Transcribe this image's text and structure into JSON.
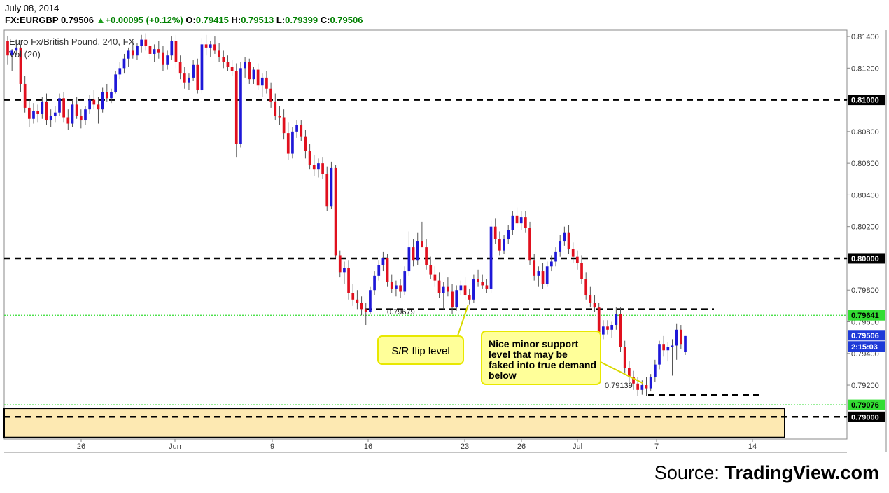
{
  "header": {
    "date": "July 08, 2014",
    "symbol": "FX:EURGBP",
    "last": "0.79506",
    "change": "+0.00095 (+0.12%)",
    "open_label": "O:",
    "open": "0.79415",
    "high_label": "H:",
    "high": "0.79513",
    "low_label": "L:",
    "low": "0.79399",
    "close_label": "C:",
    "close": "0.79506",
    "instrument_name": "Euro Fx/British Pound, 240, FX",
    "volume_label": "Vol (20)"
  },
  "source": {
    "prefix": "Source:",
    "brand": "TradingView.com"
  },
  "colors": {
    "bull": "#1e18d8",
    "bear": "#e0101e",
    "support_line": "#000000",
    "green_line": "#33dd33",
    "zone_fill": "#fde9b2",
    "callout_fill": "#ffff99",
    "callout_border": "#e8e800",
    "price_tag_blue": "#1e3ad8",
    "price_tag_green": "#33dd33"
  },
  "chart_data": {
    "type": "candlestick",
    "ylim": [
      0.7886,
      0.8144
    ],
    "y_ticks": [
      "0.81400",
      "0.81200",
      "0.81000",
      "0.80800",
      "0.80600",
      "0.80400",
      "0.80200",
      "0.80000",
      "0.79800",
      "0.79600",
      "0.79400",
      "0.79200",
      "0.79000"
    ],
    "x_ticks": [
      "26",
      "Jun",
      "9",
      "16",
      "23",
      "26",
      "Jul",
      "7",
      "14"
    ],
    "price_tags": [
      {
        "value": "0.81000",
        "style": "black"
      },
      {
        "value": "0.80000",
        "style": "black"
      },
      {
        "value": "0.79641",
        "style": "green"
      },
      {
        "value": "0.79506",
        "style": "blue"
      },
      {
        "value": "2:15:03",
        "style": "blue"
      },
      {
        "value": "0.79076",
        "style": "green"
      },
      {
        "value": "0.79000",
        "style": "black"
      }
    ],
    "horizontal_levels": [
      {
        "price": 0.81,
        "style": "dashed-black"
      },
      {
        "price": 0.8,
        "style": "dashed-black"
      },
      {
        "price": 0.79641,
        "style": "dotted-green"
      },
      {
        "price": 0.79076,
        "style": "dotted-green"
      },
      {
        "price": 0.79,
        "style": "dashed-black"
      },
      {
        "price": 0.79679,
        "style": "dashed-black-segment"
      },
      {
        "price": 0.79139,
        "style": "dashed-black-segment"
      }
    ],
    "demand_zone": [
      0.7887,
      0.79076
    ],
    "price_labels": [
      "0.79679",
      "0.79139"
    ],
    "annotations": [
      "S/R flip level",
      "Nice minor support level that may be faked into true demand below"
    ],
    "series": [
      {
        "ohlc": [
          [
            0.8137,
            0.814,
            0.8122,
            0.8128
          ],
          [
            0.8128,
            0.8132,
            0.8118,
            0.8131
          ],
          [
            0.8131,
            0.8138,
            0.8128,
            0.8133
          ],
          [
            0.8133,
            0.8135,
            0.8105,
            0.811
          ],
          [
            0.811,
            0.8115,
            0.8092,
            0.8095
          ],
          [
            0.8095,
            0.81,
            0.8083,
            0.8088
          ],
          [
            0.8088,
            0.8098,
            0.8085,
            0.8093
          ],
          [
            0.8093,
            0.8097,
            0.8086,
            0.8091
          ],
          [
            0.8091,
            0.8102,
            0.8088,
            0.8099
          ],
          [
            0.8099,
            0.8104,
            0.8084,
            0.8087
          ],
          [
            0.8087,
            0.8094,
            0.8083,
            0.809
          ],
          [
            0.809,
            0.8096,
            0.8086,
            0.8092
          ],
          [
            0.8092,
            0.8104,
            0.809,
            0.8101
          ],
          [
            0.8101,
            0.8105,
            0.8086,
            0.8089
          ],
          [
            0.8089,
            0.8094,
            0.8081,
            0.8085
          ],
          [
            0.8085,
            0.81,
            0.8083,
            0.8097
          ],
          [
            0.8097,
            0.8102,
            0.8088,
            0.809
          ],
          [
            0.809,
            0.8094,
            0.8082,
            0.8087
          ],
          [
            0.8087,
            0.8096,
            0.8084,
            0.8094
          ],
          [
            0.8094,
            0.8103,
            0.8091,
            0.81
          ],
          [
            0.81,
            0.8106,
            0.8094,
            0.8097
          ],
          [
            0.8097,
            0.8102,
            0.8085,
            0.8094
          ],
          [
            0.8094,
            0.8108,
            0.8092,
            0.8105
          ],
          [
            0.8105,
            0.811,
            0.8099,
            0.8101
          ],
          [
            0.8101,
            0.8107,
            0.8098,
            0.8105
          ],
          [
            0.8105,
            0.8118,
            0.8104,
            0.8116
          ],
          [
            0.8116,
            0.8124,
            0.8113,
            0.812
          ],
          [
            0.812,
            0.8129,
            0.8117,
            0.8126
          ],
          [
            0.8126,
            0.8133,
            0.8121,
            0.8131
          ],
          [
            0.8131,
            0.8137,
            0.8126,
            0.8128
          ],
          [
            0.8128,
            0.8136,
            0.8125,
            0.8134
          ],
          [
            0.8134,
            0.8141,
            0.813,
            0.8138
          ],
          [
            0.8138,
            0.8142,
            0.8131,
            0.8134
          ],
          [
            0.8134,
            0.8138,
            0.8126,
            0.8129
          ],
          [
            0.8129,
            0.8135,
            0.8124,
            0.8132
          ],
          [
            0.8132,
            0.8137,
            0.8126,
            0.813
          ],
          [
            0.813,
            0.8134,
            0.8118,
            0.8122
          ],
          [
            0.8122,
            0.8131,
            0.8119,
            0.8128
          ],
          [
            0.8128,
            0.814,
            0.8125,
            0.8137
          ],
          [
            0.8137,
            0.8141,
            0.812,
            0.8124
          ],
          [
            0.8124,
            0.8128,
            0.8113,
            0.8117
          ],
          [
            0.8117,
            0.8121,
            0.8107,
            0.8111
          ],
          [
            0.8111,
            0.8117,
            0.8106,
            0.8114
          ],
          [
            0.8114,
            0.8125,
            0.8112,
            0.8122
          ],
          [
            0.8122,
            0.8126,
            0.8104,
            0.8106
          ],
          [
            0.8106,
            0.8139,
            0.8104,
            0.8135
          ],
          [
            0.8135,
            0.8141,
            0.8128,
            0.8133
          ],
          [
            0.8133,
            0.8137,
            0.8127,
            0.8135
          ],
          [
            0.8135,
            0.814,
            0.8129,
            0.8131
          ],
          [
            0.8131,
            0.8136,
            0.8124,
            0.8127
          ],
          [
            0.8127,
            0.8131,
            0.812,
            0.8124
          ],
          [
            0.8124,
            0.8128,
            0.8118,
            0.8121
          ],
          [
            0.8121,
            0.8125,
            0.8115,
            0.8118
          ],
          [
            0.8118,
            0.8123,
            0.8064,
            0.8072
          ],
          [
            0.8072,
            0.8124,
            0.807,
            0.812
          ],
          [
            0.812,
            0.8127,
            0.8114,
            0.8124
          ],
          [
            0.8124,
            0.8126,
            0.811,
            0.8113
          ],
          [
            0.8113,
            0.8121,
            0.811,
            0.8119
          ],
          [
            0.8119,
            0.8123,
            0.8106,
            0.8109
          ],
          [
            0.8109,
            0.8117,
            0.8102,
            0.8114
          ],
          [
            0.8114,
            0.8118,
            0.8104,
            0.8107
          ],
          [
            0.8107,
            0.8111,
            0.8095,
            0.8099
          ],
          [
            0.8099,
            0.8104,
            0.8087,
            0.809
          ],
          [
            0.809,
            0.8096,
            0.8084,
            0.8089
          ],
          [
            0.8089,
            0.8094,
            0.8075,
            0.8079
          ],
          [
            0.8079,
            0.8086,
            0.8062,
            0.8066
          ],
          [
            0.8066,
            0.8083,
            0.8063,
            0.808
          ],
          [
            0.808,
            0.8087,
            0.8076,
            0.8084
          ],
          [
            0.8084,
            0.8087,
            0.8074,
            0.8077
          ],
          [
            0.8077,
            0.8081,
            0.8063,
            0.8068
          ],
          [
            0.8068,
            0.8072,
            0.8056,
            0.8059
          ],
          [
            0.8059,
            0.8065,
            0.8052,
            0.8056
          ],
          [
            0.8056,
            0.8063,
            0.8051,
            0.806
          ],
          [
            0.806,
            0.8064,
            0.805,
            0.8053
          ],
          [
            0.8053,
            0.8058,
            0.803,
            0.8033
          ],
          [
            0.8033,
            0.8061,
            0.8031,
            0.8057
          ],
          [
            0.8057,
            0.8059,
            0.8,
            0.8002
          ],
          [
            0.8002,
            0.8005,
            0.7988,
            0.7991
          ],
          [
            0.7991,
            0.7998,
            0.7984,
            0.7994
          ],
          [
            0.7994,
            0.7999,
            0.7974,
            0.7978
          ],
          [
            0.7978,
            0.7984,
            0.797,
            0.7974
          ],
          [
            0.7974,
            0.798,
            0.7968,
            0.7972
          ],
          [
            0.7972,
            0.7976,
            0.7964,
            0.7968
          ],
          [
            0.7968,
            0.7972,
            0.7958,
            0.7966
          ],
          [
            0.7966,
            0.7982,
            0.7965,
            0.798
          ],
          [
            0.798,
            0.7992,
            0.7977,
            0.7989
          ],
          [
            0.7989,
            0.7999,
            0.7986,
            0.7996
          ],
          [
            0.7996,
            0.8004,
            0.7992,
            0.8
          ],
          [
            0.8,
            0.8003,
            0.7982,
            0.7985
          ],
          [
            0.7985,
            0.799,
            0.7978,
            0.7981
          ],
          [
            0.7981,
            0.7986,
            0.7976,
            0.7983
          ],
          [
            0.7983,
            0.7987,
            0.7975,
            0.7979
          ],
          [
            0.7979,
            0.7995,
            0.7977,
            0.7992
          ],
          [
            0.7992,
            0.8017,
            0.7989,
            0.8007
          ],
          [
            0.8007,
            0.8012,
            0.7995,
            0.7999
          ],
          [
            0.7999,
            0.8016,
            0.7996,
            0.8011
          ],
          [
            0.8011,
            0.8023,
            0.8008,
            0.8007
          ],
          [
            0.8007,
            0.8012,
            0.7993,
            0.7996
          ],
          [
            0.7996,
            0.8001,
            0.7987,
            0.799
          ],
          [
            0.799,
            0.7995,
            0.7982,
            0.7986
          ],
          [
            0.7986,
            0.7991,
            0.7975,
            0.7978
          ],
          [
            0.7978,
            0.7985,
            0.7968,
            0.7982
          ],
          [
            0.7982,
            0.7988,
            0.7976,
            0.7979
          ],
          [
            0.7979,
            0.7984,
            0.7965,
            0.7969
          ],
          [
            0.7969,
            0.7983,
            0.7967,
            0.798
          ],
          [
            0.798,
            0.7986,
            0.7977,
            0.7983
          ],
          [
            0.7983,
            0.7988,
            0.7974,
            0.7977
          ],
          [
            0.7977,
            0.7981,
            0.7971,
            0.7974
          ],
          [
            0.7974,
            0.799,
            0.7972,
            0.7987
          ],
          [
            0.7987,
            0.7993,
            0.7982,
            0.7985
          ],
          [
            0.7985,
            0.799,
            0.7981,
            0.7983
          ],
          [
            0.7983,
            0.7987,
            0.7978,
            0.7981
          ],
          [
            0.7981,
            0.8024,
            0.7978,
            0.802
          ],
          [
            0.802,
            0.8025,
            0.8009,
            0.8012
          ],
          [
            0.8012,
            0.8017,
            0.8002,
            0.8005
          ],
          [
            0.8005,
            0.8015,
            0.8003,
            0.8012
          ],
          [
            0.8012,
            0.8021,
            0.8009,
            0.8018
          ],
          [
            0.8018,
            0.803,
            0.8015,
            0.8027
          ],
          [
            0.8027,
            0.8032,
            0.8019,
            0.8022
          ],
          [
            0.8022,
            0.803,
            0.8018,
            0.8026
          ],
          [
            0.8026,
            0.803,
            0.8016,
            0.8019
          ],
          [
            0.8019,
            0.8023,
            0.7996,
            0.7999
          ],
          [
            0.7999,
            0.8003,
            0.7986,
            0.7989
          ],
          [
            0.7989,
            0.7995,
            0.7982,
            0.7992
          ],
          [
            0.7992,
            0.7997,
            0.7981,
            0.7984
          ],
          [
            0.7984,
            0.7998,
            0.7982,
            0.7995
          ],
          [
            0.7995,
            0.8002,
            0.7992,
            0.7998
          ],
          [
            0.7998,
            0.8007,
            0.7995,
            0.8004
          ],
          [
            0.8004,
            0.8015,
            0.8001,
            0.8011
          ],
          [
            0.8011,
            0.802,
            0.8008,
            0.8016
          ],
          [
            0.8016,
            0.8021,
            0.8003,
            0.8006
          ],
          [
            0.8006,
            0.801,
            0.7997,
            0.8001
          ],
          [
            0.8001,
            0.8005,
            0.7993,
            0.7997
          ],
          [
            0.7997,
            0.8002,
            0.7984,
            0.7987
          ],
          [
            0.7987,
            0.7991,
            0.7974,
            0.7977
          ],
          [
            0.7977,
            0.7982,
            0.7969,
            0.7972
          ],
          [
            0.7972,
            0.7977,
            0.7966,
            0.7969
          ],
          [
            0.7969,
            0.7972,
            0.7949,
            0.7952
          ],
          [
            0.7952,
            0.7961,
            0.7949,
            0.7957
          ],
          [
            0.7957,
            0.7961,
            0.7952,
            0.7955
          ],
          [
            0.7955,
            0.796,
            0.795,
            0.7958
          ],
          [
            0.7958,
            0.7969,
            0.7955,
            0.7965
          ],
          [
            0.7965,
            0.7969,
            0.7941,
            0.7944
          ],
          [
            0.7944,
            0.7948,
            0.7928,
            0.7931
          ],
          [
            0.7931,
            0.7935,
            0.7922,
            0.7925
          ],
          [
            0.7925,
            0.7929,
            0.7917,
            0.7921
          ],
          [
            0.7921,
            0.7925,
            0.7913,
            0.7917
          ],
          [
            0.7917,
            0.7923,
            0.7914,
            0.792
          ],
          [
            0.792,
            0.7925,
            0.7913,
            0.7918
          ],
          [
            0.7918,
            0.7927,
            0.7916,
            0.7925
          ],
          [
            0.7925,
            0.7936,
            0.7922,
            0.7933
          ],
          [
            0.7933,
            0.7948,
            0.793,
            0.7946
          ],
          [
            0.7946,
            0.7951,
            0.7938,
            0.7942
          ],
          [
            0.7942,
            0.7947,
            0.7935,
            0.7944
          ],
          [
            0.7944,
            0.7949,
            0.7926,
            0.7945
          ],
          [
            0.7945,
            0.7959,
            0.7936,
            0.7955
          ],
          [
            0.7955,
            0.7958,
            0.7943,
            0.7946
          ],
          [
            0.7941,
            0.7951,
            0.7939,
            0.7951
          ]
        ]
      }
    ]
  }
}
